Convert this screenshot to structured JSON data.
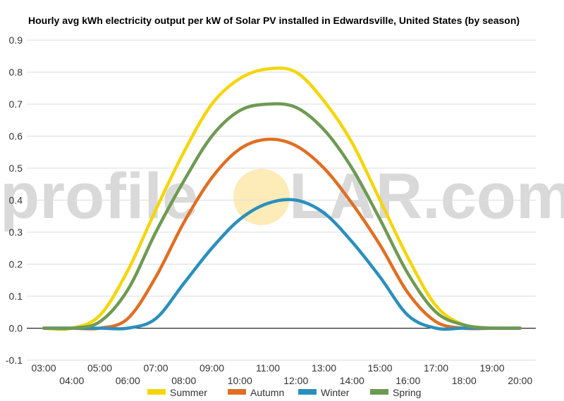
{
  "chart_data": {
    "type": "line",
    "title": "Hourly avg kWh electricity output per kW of Solar PV installed in Edwardsville, United States (by season)",
    "xlabel": "",
    "ylabel": "",
    "ylim": [
      -0.1,
      0.9
    ],
    "yticks": [
      "-0.1",
      "0.0",
      "0.1",
      "0.2",
      "0.3",
      "0.4",
      "0.5",
      "0.6",
      "0.7",
      "0.8",
      "0.9"
    ],
    "x": [
      "03:00",
      "04:00",
      "05:00",
      "06:00",
      "07:00",
      "08:00",
      "09:00",
      "10:00",
      "11:00",
      "12:00",
      "13:00",
      "14:00",
      "15:00",
      "16:00",
      "17:00",
      "18:00",
      "19:00",
      "20:00"
    ],
    "grid": true,
    "legend_position": "bottom",
    "series": [
      {
        "name": "Summer",
        "color": "#f5d50a",
        "values": [
          0.0,
          0.0,
          0.04,
          0.18,
          0.37,
          0.55,
          0.7,
          0.78,
          0.81,
          0.8,
          0.71,
          0.58,
          0.4,
          0.22,
          0.07,
          0.01,
          0.0,
          0.0
        ]
      },
      {
        "name": "Autumn",
        "color": "#e06f23",
        "values": [
          0.0,
          0.0,
          0.0,
          0.03,
          0.16,
          0.33,
          0.47,
          0.56,
          0.59,
          0.57,
          0.5,
          0.39,
          0.26,
          0.11,
          0.02,
          0.0,
          0.0,
          0.0
        ]
      },
      {
        "name": "Winter",
        "color": "#2b8fbd",
        "values": [
          0.0,
          0.0,
          0.0,
          0.0,
          0.03,
          0.14,
          0.25,
          0.34,
          0.39,
          0.4,
          0.36,
          0.27,
          0.16,
          0.04,
          0.0,
          0.0,
          0.0,
          0.0
        ]
      },
      {
        "name": "Spring",
        "color": "#6e9a52",
        "values": [
          0.0,
          0.0,
          0.02,
          0.12,
          0.3,
          0.46,
          0.6,
          0.68,
          0.7,
          0.69,
          0.62,
          0.5,
          0.34,
          0.17,
          0.05,
          0.01,
          0.0,
          0.0
        ]
      }
    ]
  },
  "watermark": {
    "left_text": "profile",
    "sun_letter": "S",
    "right_text": "LAR.com",
    "sun_color": "#fdebb8"
  }
}
